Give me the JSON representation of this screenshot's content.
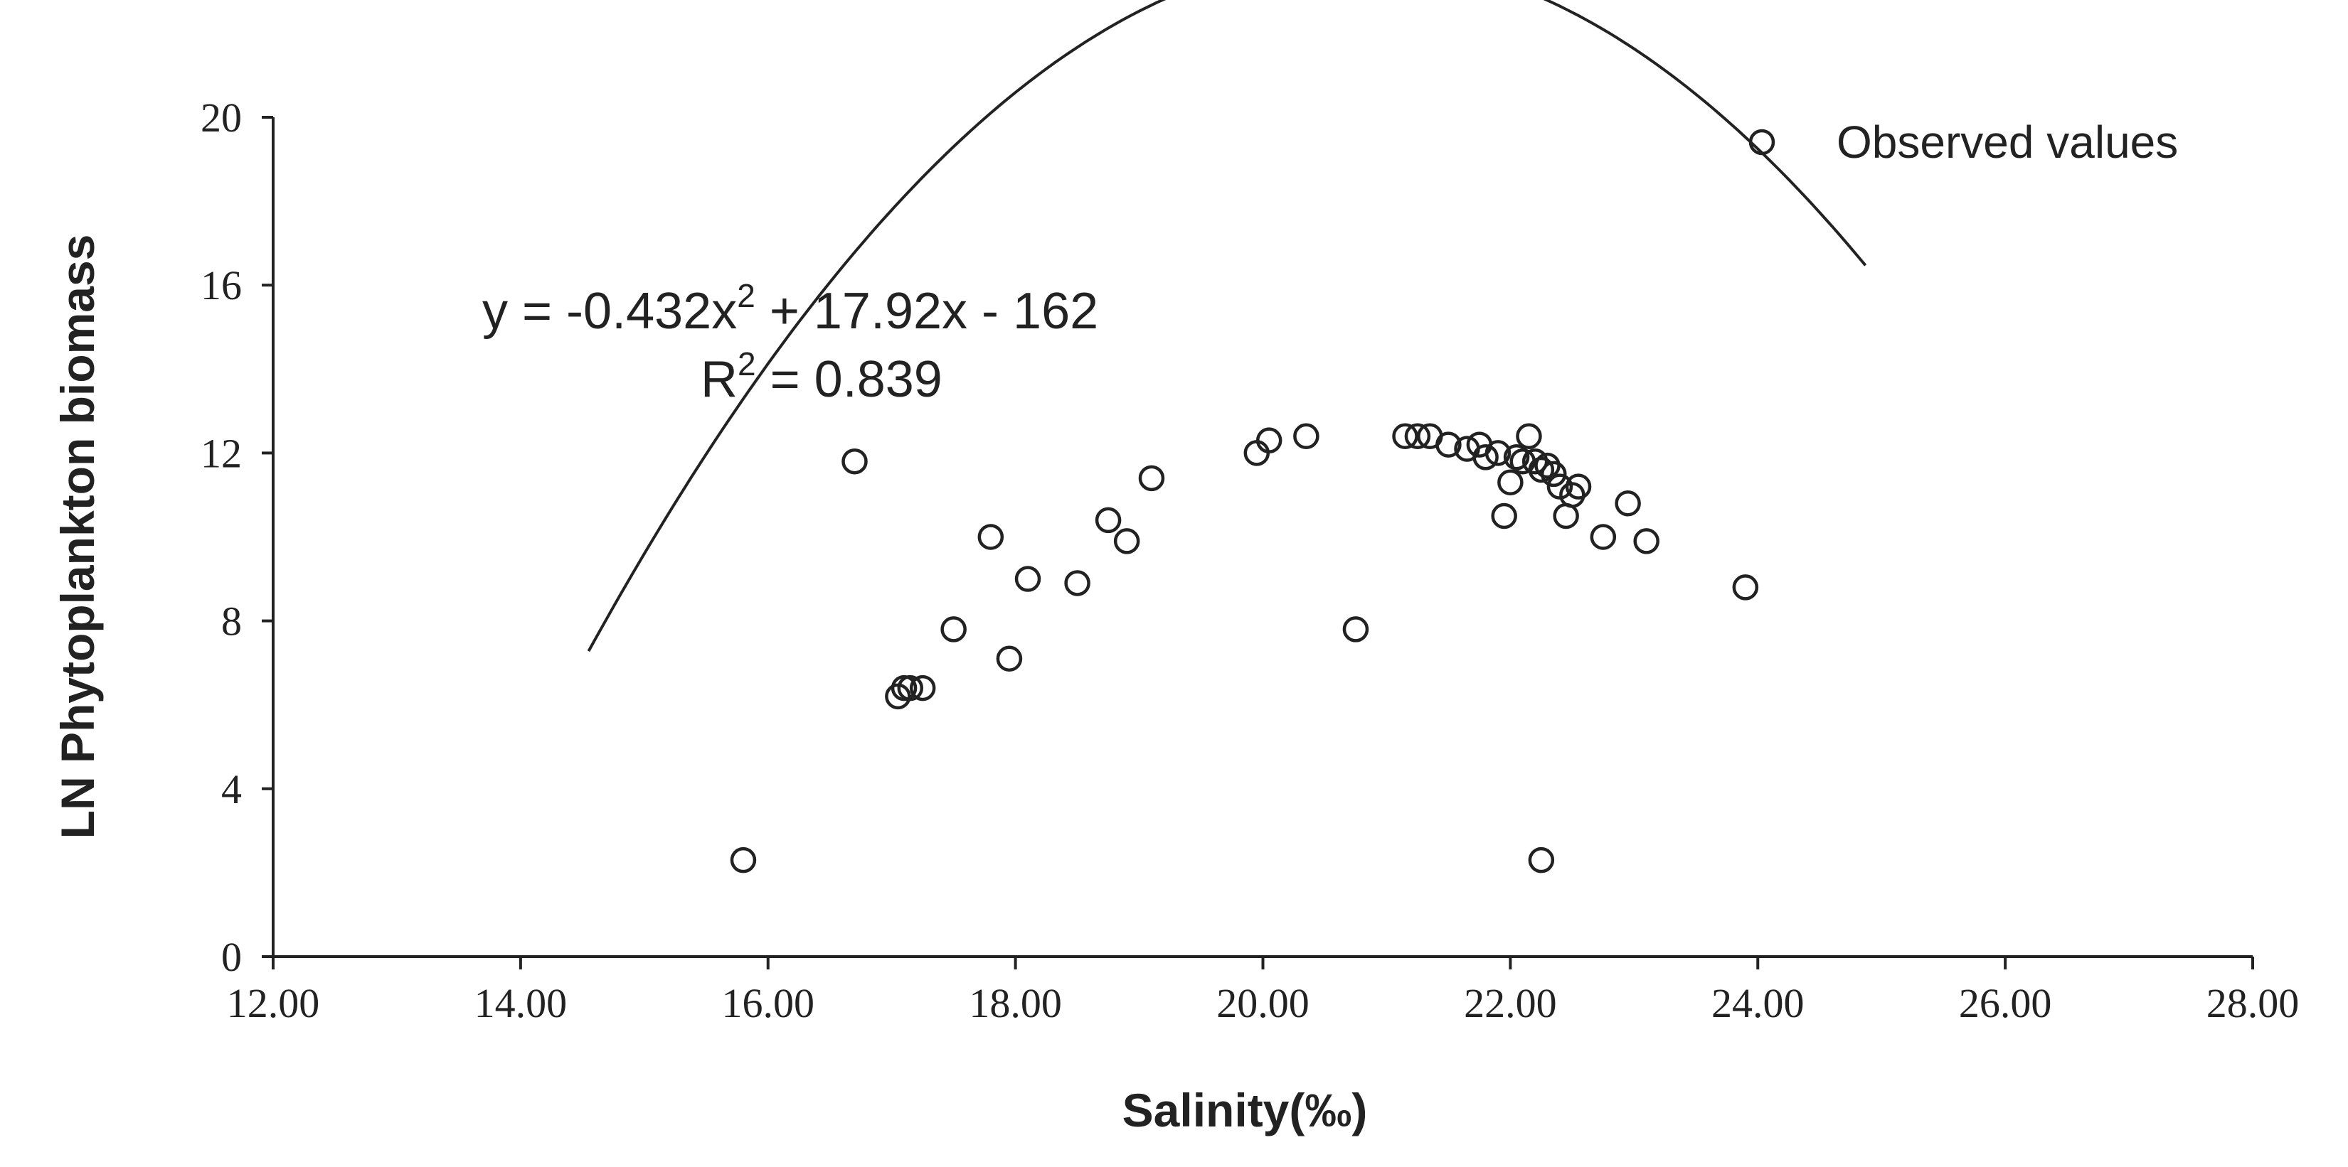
{
  "chart_data": {
    "type": "scatter",
    "xlabel": "Salinity(‰)",
    "ylabel": "LN Phytoplankton biomass",
    "xlim": [
      12,
      28
    ],
    "ylim": [
      0,
      20
    ],
    "x_ticks": [
      12,
      14,
      16,
      18,
      20,
      22,
      24,
      26,
      28
    ],
    "x_tick_labels": [
      "12.00",
      "14.00",
      "16.00",
      "18.00",
      "20.00",
      "22.00",
      "24.00",
      "26.00",
      "28.00"
    ],
    "y_ticks": [
      0,
      4,
      8,
      12,
      16,
      20
    ],
    "y_tick_labels": [
      "0",
      "4",
      "8",
      "12",
      "16",
      "20"
    ],
    "legend": {
      "position": "top-right",
      "entries": [
        "Observed values"
      ]
    },
    "annotation": {
      "equation_prefix": "y = -0.432x",
      "equation_exp": "2",
      "equation_suffix": " + 17.92x - 162",
      "r2_prefix": "R",
      "r2_exp": "2",
      "r2_suffix": " = 0.839"
    },
    "trendline": {
      "type": "polynomial",
      "a": -0.432,
      "b": 17.92,
      "c": -162,
      "x_range": [
        14.55,
        24.87
      ]
    },
    "series": [
      {
        "name": "Observed values",
        "points": [
          [
            15.8,
            2.3
          ],
          [
            16.7,
            11.8
          ],
          [
            17.05,
            6.2
          ],
          [
            17.1,
            6.4
          ],
          [
            17.15,
            6.4
          ],
          [
            17.25,
            6.4
          ],
          [
            17.5,
            7.8
          ],
          [
            17.8,
            10.0
          ],
          [
            17.95,
            7.1
          ],
          [
            18.1,
            9.0
          ],
          [
            18.5,
            8.9
          ],
          [
            18.75,
            10.4
          ],
          [
            18.9,
            9.9
          ],
          [
            19.1,
            11.4
          ],
          [
            19.95,
            12.0
          ],
          [
            20.05,
            12.3
          ],
          [
            20.35,
            12.4
          ],
          [
            20.75,
            7.8
          ],
          [
            21.15,
            12.4
          ],
          [
            21.25,
            12.4
          ],
          [
            21.35,
            12.4
          ],
          [
            21.5,
            12.2
          ],
          [
            21.65,
            12.1
          ],
          [
            21.75,
            12.2
          ],
          [
            21.8,
            11.9
          ],
          [
            21.9,
            12.0
          ],
          [
            21.95,
            10.5
          ],
          [
            22.0,
            11.3
          ],
          [
            22.05,
            11.9
          ],
          [
            22.1,
            11.8
          ],
          [
            22.15,
            12.4
          ],
          [
            22.2,
            11.8
          ],
          [
            22.25,
            11.6
          ],
          [
            22.3,
            11.7
          ],
          [
            22.35,
            11.5
          ],
          [
            22.4,
            11.2
          ],
          [
            22.45,
            10.5
          ],
          [
            22.5,
            11.0
          ],
          [
            22.55,
            11.2
          ],
          [
            22.25,
            2.3
          ],
          [
            22.75,
            10.0
          ],
          [
            22.95,
            10.8
          ],
          [
            23.1,
            9.9
          ],
          [
            23.9,
            8.8
          ]
        ]
      }
    ]
  }
}
